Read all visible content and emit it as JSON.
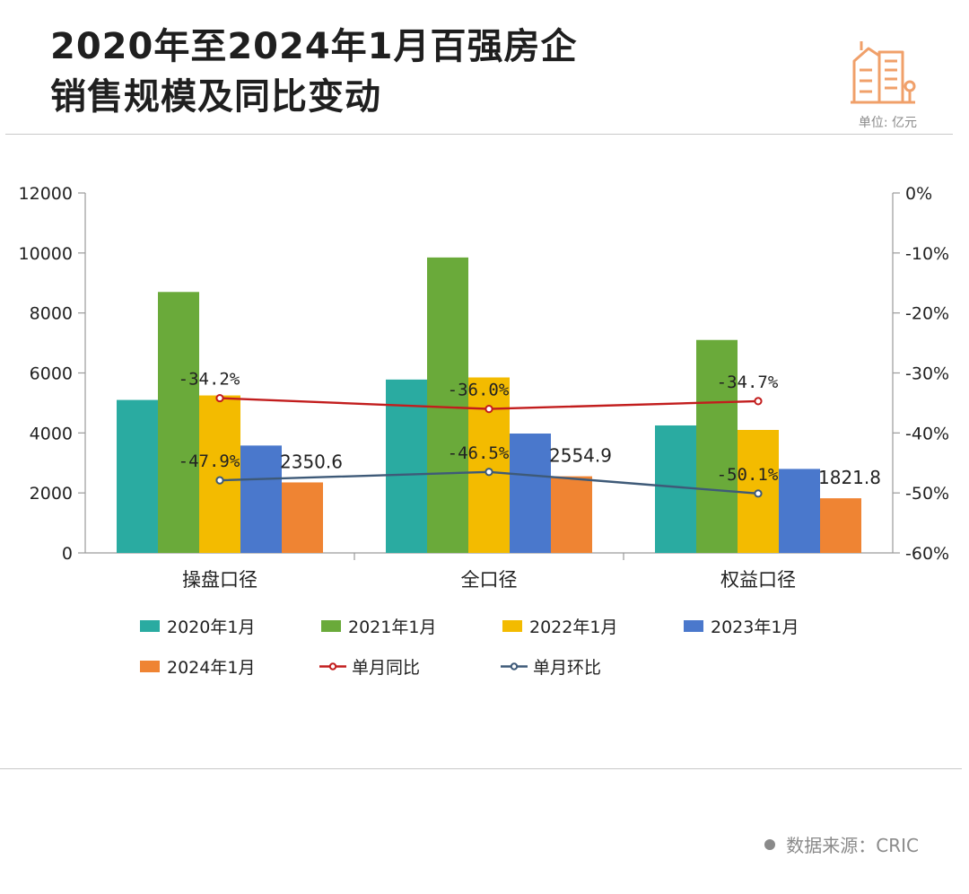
{
  "header": {
    "title_line1": "2020年至2024年1月百强房企",
    "title_line2": "销售规模及同比变动",
    "unit": "单位: 亿元",
    "logo_icon": "building-icon",
    "logo_color": "#f0a06a"
  },
  "footer": {
    "source": "数据来源：CRIC"
  },
  "chart_data": {
    "type": "bar",
    "categories": [
      "操盘口径",
      "全口径",
      "权益口径"
    ],
    "y_left": {
      "ticks": [
        "12000",
        "10000",
        "8000",
        "6000",
        "4000",
        "2000",
        "0"
      ],
      "min": 0,
      "max": 12000
    },
    "y_right": {
      "ticks": [
        "0%",
        "-10%",
        "-20%",
        "-30%",
        "-40%",
        "-50%",
        "-60%"
      ],
      "min": -60,
      "max": 0
    },
    "series": [
      {
        "name": "2020年1月",
        "color": "#2aaba1",
        "values": [
          5100,
          5780,
          4250
        ]
      },
      {
        "name": "2021年1月",
        "color": "#6aaa3a",
        "values": [
          8700,
          9850,
          7100
        ]
      },
      {
        "name": "2022年1月",
        "color": "#f3bb00",
        "values": [
          5250,
          5850,
          4100
        ]
      },
      {
        "name": "2023年1月",
        "color": "#4a78cc",
        "values": [
          3580,
          3980,
          2800
        ]
      },
      {
        "name": "2024年1月",
        "color": "#ef8433",
        "values": [
          2350.6,
          2554.9,
          1821.8
        ],
        "data_labels": [
          "2350.6",
          "2554.9",
          "1821.8"
        ]
      }
    ],
    "lines": [
      {
        "name": "单月同比",
        "color": "#c21d1d",
        "values": [
          -34.2,
          -36.0,
          -34.7
        ],
        "labels": [
          "-34.2%",
          "-36.0%",
          "-34.7%"
        ]
      },
      {
        "name": "单月环比",
        "color": "#3e5a78",
        "values": [
          -47.9,
          -46.5,
          -50.1
        ],
        "labels": [
          "-47.9%",
          "-46.5%",
          "-50.1%"
        ]
      }
    ],
    "legend_position": "bottom",
    "grid": false
  }
}
